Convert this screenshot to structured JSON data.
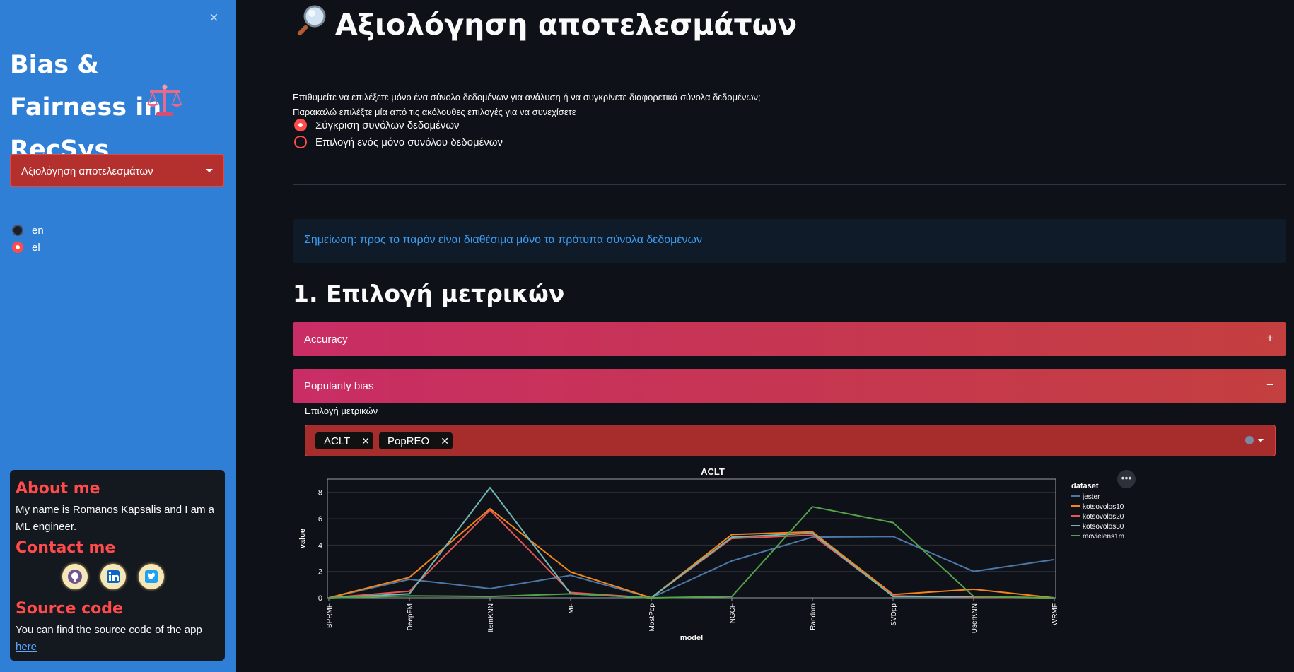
{
  "sidebar": {
    "close_label": "×",
    "title": "Bias & Fairness in RecSys",
    "page_select_value": "Αξιολόγηση αποτελεσμάτων",
    "languages": [
      {
        "label": "en",
        "selected": false
      },
      {
        "label": "el",
        "selected": true
      }
    ],
    "about_heading": "About me",
    "about_text": "My name is Romanos Kapsalis and I am a ML engineer.",
    "contact_heading": "Contact me",
    "social_icons": [
      "github-icon",
      "linkedin-icon",
      "twitter-icon"
    ],
    "source_heading": "Source code",
    "source_text": "You can find the source code of the app",
    "source_link": "here"
  },
  "main": {
    "title": "Αξιολόγηση αποτελεσμάτων",
    "question_line1": "Επιθυμείτε να επιλέξετε μόνο ένα σύνολο δεδομένων για ανάλυση ή να συγκρίνετε διαφορετικά σύνολα δεδομένων;",
    "question_line2": "Παρακαλώ επιλέξτε μία από τις ακόλουθες επιλογές για να συνεχίσετε",
    "mode_options": [
      {
        "label": "Σύγκριση συνόλων δεδομένων",
        "selected": true
      },
      {
        "label": "Επιλογή ενός μόνο συνόλου δεδομένων",
        "selected": false
      }
    ],
    "info_note": "Σημείωση: προς το παρόν είναι διαθέσιμα μόνο τα πρότυπα σύνολα δεδομένων",
    "section_heading": "1. Επιλογή μετρικών",
    "expanders": [
      {
        "label": "Accuracy",
        "expanded": false,
        "sign": "+"
      },
      {
        "label": "Popularity bias",
        "expanded": true,
        "sign": "−"
      }
    ],
    "metric_select_label": "Επιλογή μετρικών",
    "selected_metrics": [
      "ACLT",
      "PopREO"
    ],
    "chip_close": "✕",
    "chart_menu_label": "•••"
  },
  "colors": {
    "accent": "#ff4b4b",
    "sidebar": "#2f7fd6",
    "expander": "#c92d65"
  },
  "chart_data": {
    "type": "line",
    "title": "ACLT",
    "xlabel": "model",
    "ylabel": "value",
    "legend_title": "dataset",
    "legend_position": "right",
    "categories": [
      "BPRMF",
      "DeepFM",
      "ItemKNN",
      "MF",
      "MostPop",
      "NGCF",
      "Random",
      "SVDpp",
      "UserKNN",
      "WRMF"
    ],
    "ylim": [
      0,
      9
    ],
    "yticks": [
      0,
      2,
      4,
      6,
      8
    ],
    "series": [
      {
        "name": "jester",
        "color": "#4c78a8",
        "values": [
          0,
          1.4,
          0.7,
          1.7,
          0,
          2.8,
          4.6,
          4.65,
          2.0,
          2.9
        ]
      },
      {
        "name": "kotsovolos10",
        "color": "#f58518",
        "values": [
          0,
          1.55,
          6.75,
          1.95,
          0,
          4.8,
          5.0,
          0.25,
          0.65,
          0
        ]
      },
      {
        "name": "kotsovolos20",
        "color": "#e45756",
        "values": [
          0,
          0.5,
          6.65,
          0.4,
          0,
          4.5,
          4.75,
          0.15,
          0.05,
          0
        ]
      },
      {
        "name": "kotsovolos30",
        "color": "#72b7b2",
        "values": [
          0,
          0.3,
          8.35,
          0.3,
          0,
          4.6,
          4.9,
          0.1,
          0.1,
          0
        ]
      },
      {
        "name": "movielens1m",
        "color": "#54a24b",
        "values": [
          0,
          0.15,
          0.1,
          0.3,
          0,
          0.1,
          6.9,
          5.7,
          0.1,
          0
        ]
      }
    ]
  }
}
